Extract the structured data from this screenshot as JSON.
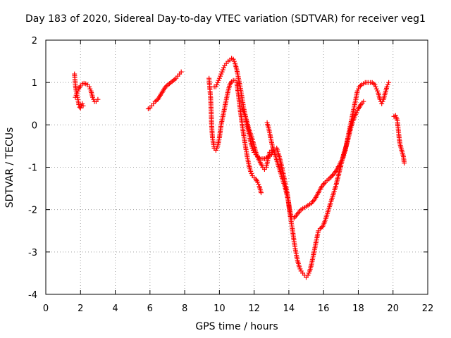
{
  "chart_data": {
    "type": "scatter",
    "title": "Day 183 of 2020, Sidereal Day-to-day VTEC variation (SDTVAR) for receiver veg1",
    "xlabel": "GPS time / hours",
    "ylabel": "SDTVAR / TECUs",
    "xlim": [
      0,
      22
    ],
    "ylim": [
      -4,
      2
    ],
    "xticks": [
      "0",
      "2",
      "4",
      "6",
      "8",
      "10",
      "12",
      "14",
      "16",
      "18",
      "20",
      "22"
    ],
    "yticks": [
      "-4",
      "-3",
      "-2",
      "-1",
      "0",
      "1",
      "2"
    ],
    "grid": true,
    "marker": "+",
    "marker_color": "#ff0000",
    "series": [
      {
        "segments": [
          [
            [
              1.65,
              1.2
            ],
            [
              1.7,
              0.95
            ],
            [
              1.75,
              0.8
            ],
            [
              1.8,
              0.7
            ],
            [
              1.85,
              0.6
            ],
            [
              1.9,
              0.48
            ],
            [
              1.95,
              0.42
            ],
            [
              2.0,
              0.4
            ],
            [
              2.05,
              0.45
            ],
            [
              2.1,
              0.5
            ],
            [
              2.15,
              0.45
            ]
          ],
          [
            [
              1.7,
              0.65
            ],
            [
              1.8,
              0.75
            ],
            [
              1.9,
              0.85
            ],
            [
              2.0,
              0.92
            ],
            [
              2.1,
              0.97
            ],
            [
              2.2,
              0.98
            ],
            [
              2.3,
              0.97
            ],
            [
              2.4,
              0.95
            ],
            [
              2.5,
              0.9
            ],
            [
              2.6,
              0.8
            ],
            [
              2.7,
              0.65
            ],
            [
              2.8,
              0.55
            ],
            [
              2.9,
              0.55
            ],
            [
              3.0,
              0.6
            ]
          ],
          [
            [
              5.9,
              0.38
            ],
            [
              6.0,
              0.4
            ],
            [
              6.1,
              0.45
            ],
            [
              6.2,
              0.5
            ],
            [
              6.3,
              0.55
            ],
            [
              6.45,
              0.6
            ],
            [
              6.6,
              0.7
            ],
            [
              6.75,
              0.8
            ],
            [
              6.9,
              0.9
            ],
            [
              7.05,
              0.95
            ],
            [
              7.2,
              1.0
            ],
            [
              7.35,
              1.05
            ],
            [
              7.5,
              1.1
            ],
            [
              7.6,
              1.15
            ],
            [
              7.7,
              1.2
            ],
            [
              7.8,
              1.25
            ]
          ],
          [
            [
              9.4,
              1.1
            ],
            [
              9.5,
              0.6
            ],
            [
              9.55,
              0.0
            ],
            [
              9.6,
              -0.3
            ],
            [
              9.7,
              -0.55
            ],
            [
              9.8,
              -0.6
            ],
            [
              9.9,
              -0.5
            ],
            [
              10.0,
              -0.3
            ],
            [
              10.1,
              0.0
            ],
            [
              10.2,
              0.2
            ],
            [
              10.3,
              0.4
            ],
            [
              10.4,
              0.6
            ],
            [
              10.5,
              0.8
            ],
            [
              10.6,
              0.95
            ],
            [
              10.7,
              1.02
            ],
            [
              10.8,
              1.05
            ],
            [
              10.9,
              1.05
            ],
            [
              11.0,
              1.0
            ],
            [
              11.1,
              0.7
            ],
            [
              11.2,
              0.35
            ],
            [
              11.3,
              0.05
            ],
            [
              11.4,
              -0.25
            ],
            [
              11.5,
              -0.5
            ],
            [
              11.6,
              -0.75
            ],
            [
              11.7,
              -0.95
            ],
            [
              11.8,
              -1.1
            ],
            [
              11.9,
              -1.2
            ],
            [
              12.0,
              -1.25
            ],
            [
              12.1,
              -1.28
            ],
            [
              12.2,
              -1.35
            ],
            [
              12.3,
              -1.45
            ],
            [
              12.4,
              -1.6
            ]
          ],
          [
            [
              9.7,
              0.9
            ],
            [
              9.8,
              0.9
            ],
            [
              9.9,
              1.0
            ],
            [
              10.0,
              1.1
            ],
            [
              10.1,
              1.2
            ],
            [
              10.2,
              1.3
            ],
            [
              10.3,
              1.4
            ],
            [
              10.4,
              1.45
            ],
            [
              10.5,
              1.5
            ],
            [
              10.6,
              1.53
            ],
            [
              10.7,
              1.57
            ],
            [
              10.8,
              1.55
            ],
            [
              10.9,
              1.45
            ],
            [
              11.0,
              1.3
            ],
            [
              11.1,
              1.1
            ],
            [
              11.2,
              0.9
            ],
            [
              11.3,
              0.65
            ],
            [
              11.4,
              0.4
            ],
            [
              11.5,
              0.2
            ],
            [
              11.6,
              0.0
            ],
            [
              11.7,
              -0.2
            ],
            [
              11.8,
              -0.4
            ],
            [
              11.9,
              -0.55
            ],
            [
              12.0,
              -0.65
            ],
            [
              12.1,
              -0.7
            ],
            [
              12.2,
              -0.75
            ],
            [
              12.4,
              -0.8
            ],
            [
              12.6,
              -0.8
            ],
            [
              12.8,
              -0.75
            ],
            [
              13.0,
              -0.7
            ],
            [
              13.1,
              -0.6
            ]
          ],
          [
            [
              11.3,
              0.4
            ],
            [
              11.5,
              0.2
            ],
            [
              11.7,
              -0.1
            ],
            [
              11.9,
              -0.35
            ],
            [
              12.1,
              -0.65
            ],
            [
              12.3,
              -0.85
            ],
            [
              12.5,
              -1.0
            ],
            [
              12.6,
              -1.05
            ],
            [
              12.7,
              -1.0
            ],
            [
              12.8,
              -0.8
            ],
            [
              12.9,
              -0.65
            ],
            [
              13.0,
              -0.6
            ]
          ],
          [
            [
              12.75,
              0.05
            ],
            [
              12.85,
              -0.1
            ],
            [
              12.95,
              -0.3
            ],
            [
              13.05,
              -0.5
            ],
            [
              13.2,
              -0.7
            ],
            [
              13.35,
              -0.9
            ],
            [
              13.5,
              -1.1
            ],
            [
              13.65,
              -1.3
            ],
            [
              13.8,
              -1.5
            ],
            [
              13.95,
              -1.75
            ],
            [
              14.05,
              -2.0
            ],
            [
              14.15,
              -2.2
            ],
            [
              14.3,
              -2.2
            ],
            [
              14.5,
              -2.1
            ],
            [
              14.7,
              -2.0
            ],
            [
              14.9,
              -1.95
            ],
            [
              15.1,
              -1.9
            ],
            [
              15.3,
              -1.85
            ],
            [
              15.5,
              -1.75
            ],
            [
              15.7,
              -1.6
            ],
            [
              15.9,
              -1.45
            ],
            [
              16.1,
              -1.35
            ],
            [
              16.3,
              -1.28
            ],
            [
              16.5,
              -1.2
            ],
            [
              16.7,
              -1.1
            ],
            [
              16.9,
              -0.95
            ],
            [
              17.1,
              -0.8
            ],
            [
              17.25,
              -0.6
            ],
            [
              17.35,
              -0.4
            ],
            [
              17.45,
              -0.2
            ],
            [
              17.55,
              0.0
            ],
            [
              17.65,
              0.2
            ],
            [
              17.75,
              0.4
            ],
            [
              17.85,
              0.6
            ],
            [
              17.95,
              0.8
            ],
            [
              18.05,
              0.9
            ],
            [
              18.2,
              0.95
            ],
            [
              18.4,
              1.0
            ],
            [
              18.6,
              1.0
            ],
            [
              18.8,
              1.0
            ],
            [
              18.95,
              0.95
            ],
            [
              19.05,
              0.85
            ],
            [
              19.15,
              0.75
            ],
            [
              19.25,
              0.6
            ],
            [
              19.35,
              0.5
            ],
            [
              19.45,
              0.6
            ],
            [
              19.55,
              0.75
            ],
            [
              19.65,
              0.9
            ],
            [
              19.75,
              1.0
            ]
          ],
          [
            [
              13.3,
              -0.55
            ],
            [
              13.45,
              -0.75
            ],
            [
              13.6,
              -1.0
            ],
            [
              13.75,
              -1.3
            ],
            [
              13.9,
              -1.6
            ],
            [
              14.0,
              -1.9
            ],
            [
              14.1,
              -2.2
            ],
            [
              14.2,
              -2.45
            ],
            [
              14.3,
              -2.75
            ],
            [
              14.4,
              -3.0
            ],
            [
              14.5,
              -3.2
            ],
            [
              14.6,
              -3.35
            ],
            [
              14.7,
              -3.45
            ],
            [
              14.8,
              -3.5
            ],
            [
              14.9,
              -3.55
            ],
            [
              15.0,
              -3.6
            ],
            [
              15.1,
              -3.55
            ],
            [
              15.2,
              -3.45
            ],
            [
              15.3,
              -3.3
            ],
            [
              15.4,
              -3.1
            ],
            [
              15.5,
              -2.9
            ],
            [
              15.6,
              -2.7
            ],
            [
              15.7,
              -2.5
            ],
            [
              15.8,
              -2.45
            ],
            [
              15.95,
              -2.4
            ],
            [
              16.1,
              -2.25
            ],
            [
              16.25,
              -2.05
            ],
            [
              16.4,
              -1.85
            ],
            [
              16.55,
              -1.65
            ],
            [
              16.7,
              -1.45
            ],
            [
              16.85,
              -1.2
            ],
            [
              17.0,
              -0.95
            ],
            [
              17.15,
              -0.7
            ],
            [
              17.3,
              -0.5
            ],
            [
              17.4,
              -0.35
            ],
            [
              17.55,
              -0.1
            ],
            [
              17.7,
              0.1
            ],
            [
              17.85,
              0.25
            ],
            [
              18.0,
              0.38
            ],
            [
              18.15,
              0.48
            ],
            [
              18.3,
              0.55
            ]
          ],
          [
            [
              20.05,
              0.2
            ],
            [
              20.15,
              0.22
            ],
            [
              20.25,
              0.1
            ],
            [
              20.3,
              -0.1
            ],
            [
              20.35,
              -0.3
            ],
            [
              20.4,
              -0.45
            ],
            [
              20.5,
              -0.6
            ],
            [
              20.6,
              -0.75
            ],
            [
              20.65,
              -0.9
            ]
          ]
        ]
      }
    ]
  }
}
